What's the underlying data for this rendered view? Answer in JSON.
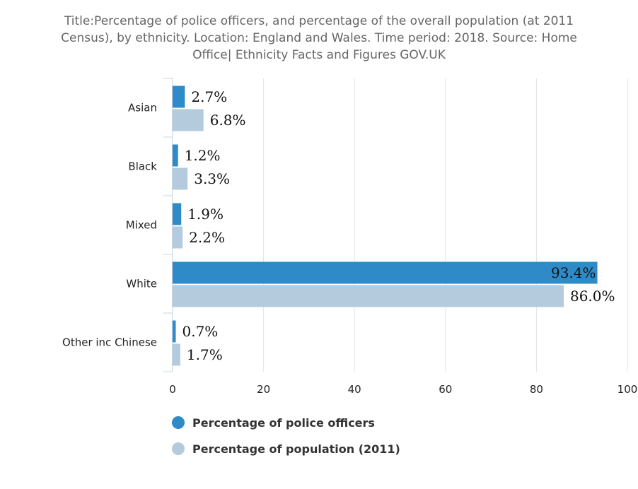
{
  "chart_data": {
    "type": "bar",
    "orientation": "horizontal",
    "title": "Title:Percentage of police officers, and percentage of the overall population (at 2011 Census), by ethnicity. Location: England and Wales. Time period: 2018. Source: Home Office| Ethnicity Facts and Figures GOV.UK",
    "categories": [
      "Asian",
      "Black",
      "Mixed",
      "White",
      "Other inc Chinese"
    ],
    "series": [
      {
        "name": "Percentage of police officers",
        "values": [
          2.7,
          1.2,
          1.9,
          93.4,
          0.7
        ],
        "labels": [
          "2.7%",
          "1.2%",
          "1.9%",
          "93.4%",
          "0.7%"
        ],
        "color": "#2e8bc7"
      },
      {
        "name": "Percentage of population (2011)",
        "values": [
          6.8,
          3.3,
          2.2,
          86.0,
          1.7
        ],
        "labels": [
          "6.8%",
          "3.3%",
          "2.2%",
          "86.0%",
          "1.7%"
        ],
        "color": "#b3cbdc"
      }
    ],
    "xlim": [
      0,
      100
    ],
    "xticks": [
      "0",
      "20",
      "40",
      "60",
      "80",
      "100"
    ],
    "xlabel": "",
    "ylabel": "",
    "grid": true,
    "legend_position": "bottom-left"
  }
}
